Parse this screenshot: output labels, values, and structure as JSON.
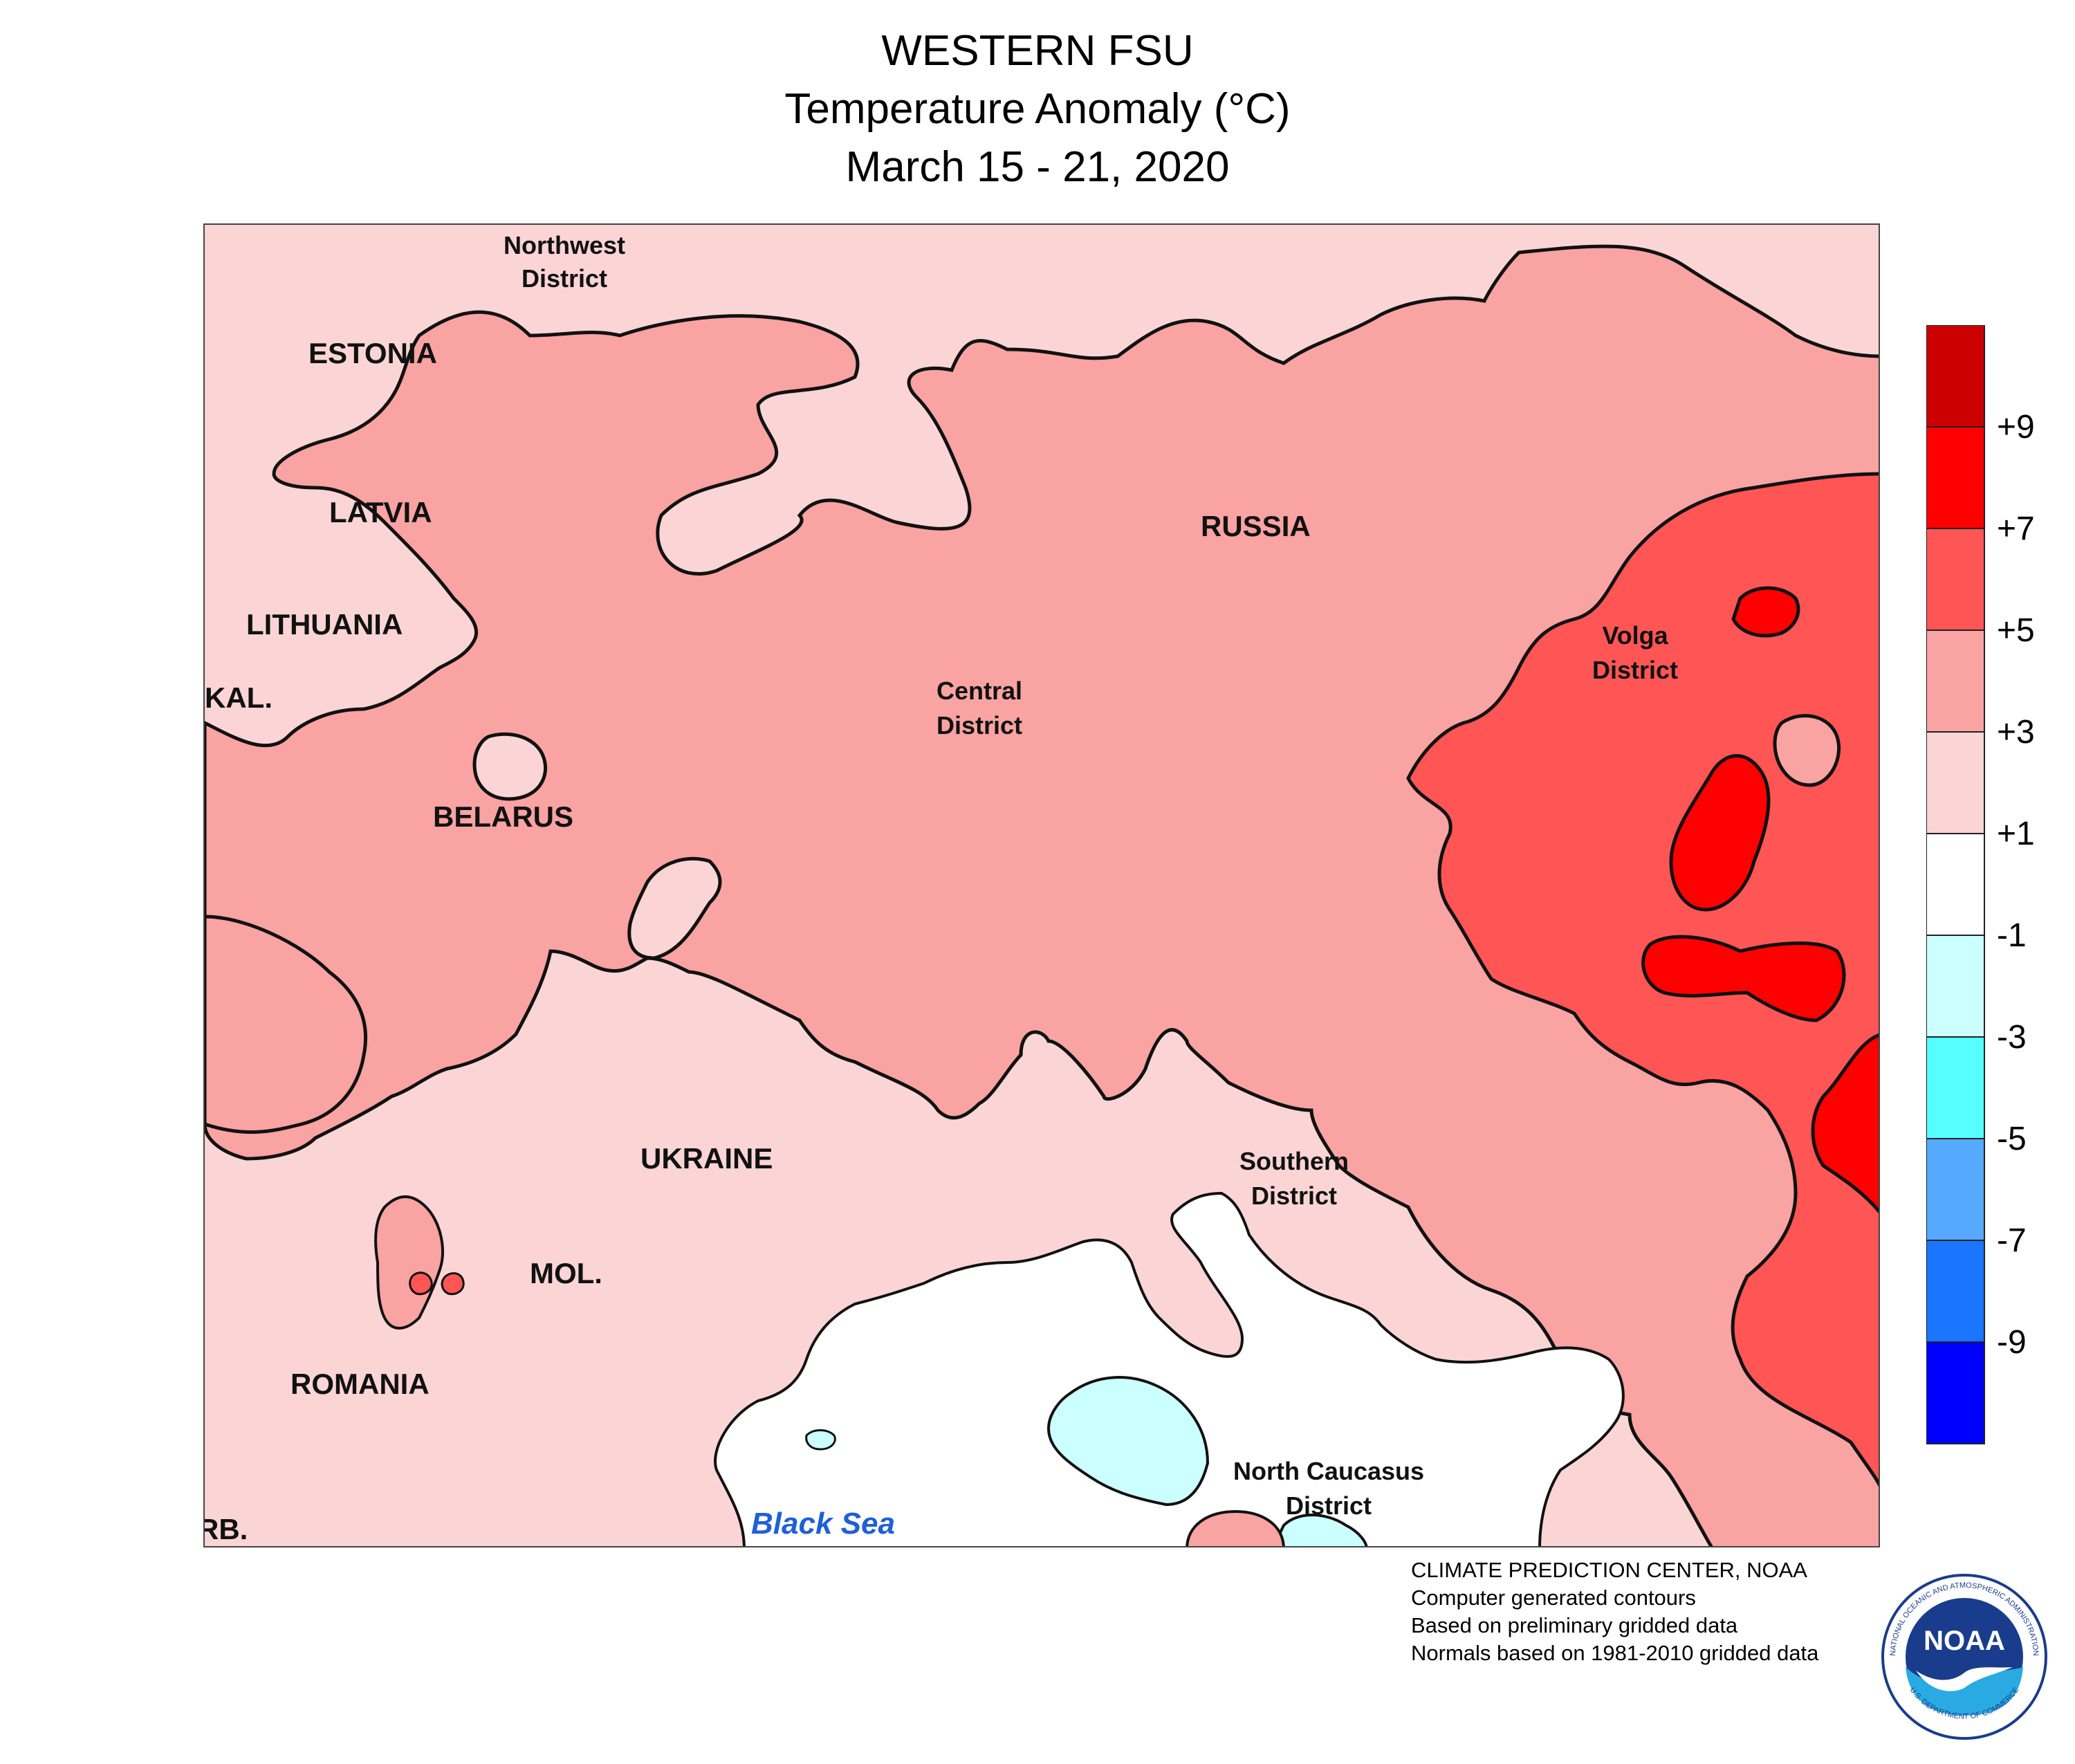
{
  "title": {
    "line1": "WESTERN FSU",
    "line2": "Temperature Anomaly (°C)",
    "line3": "March 15 - 21, 2020"
  },
  "map": {
    "labels": {
      "northwest_district": [
        "Northwest",
        "District"
      ],
      "estonia": "ESTONIA",
      "latvia": "LATVIA",
      "lithuania": "LITHUANIA",
      "kaliningrad": "KAL.",
      "belarus": "BELARUS",
      "russia": "RUSSIA",
      "central_district": [
        "Central",
        "District"
      ],
      "volga_district": [
        "Volga",
        "District"
      ],
      "ukraine": "UKRAINE",
      "southern_district": [
        "Southern",
        "District"
      ],
      "moldova": "MOL.",
      "romania": "ROMANIA",
      "north_caucasus_district": [
        "North Caucasus",
        "District"
      ],
      "serbia": "RB.",
      "black_sea": "Black Sea"
    },
    "anomaly_colors": {
      "above_9": "#cc0000",
      "7_to_9": "#ff0000",
      "5_to_7": "#ff5555",
      "3_to_5": "#f9a3a3",
      "1_to_3": "#fbd5d5",
      "minus1_to_1": "#ffffff",
      "minus3_to_minus1": "#ccffff",
      "minus5_to_minus3": "#55ffff",
      "minus7_to_minus5": "#55aaff",
      "minus9_to_minus7": "#1a75ff",
      "below_minus9": "#0000ff"
    }
  },
  "legend": {
    "colors": [
      "#cc0000",
      "#ff0000",
      "#ff5555",
      "#f9a3a3",
      "#fbd5d5",
      "#ffffff",
      "#ccffff",
      "#55ffff",
      "#55aaff",
      "#1a75ff",
      "#0000ff"
    ],
    "ticks": [
      "+9",
      "+7",
      "+5",
      "+3",
      "+1",
      "-1",
      "-3",
      "-5",
      "-7",
      "-9"
    ]
  },
  "credits": {
    "line1": "CLIMATE PREDICTION CENTER, NOAA",
    "line2": "Computer generated contours",
    "line3": "Based on preliminary gridded data",
    "line4": "Normals based on 1981-2010 gridded data"
  },
  "logo": {
    "center_text": "NOAA",
    "ring_top": "NATIONAL OCEANIC AND ATMOSPHERIC ADMINISTRATION",
    "ring_bottom": "U.S. DEPARTMENT OF COMMERCE"
  }
}
